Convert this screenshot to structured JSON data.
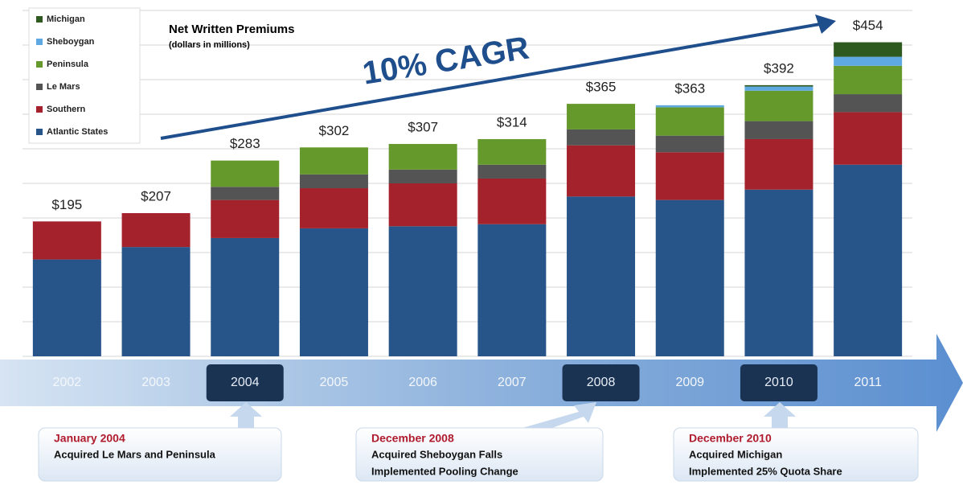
{
  "chart_data": {
    "type": "stacked_bar",
    "title": "Net Written Premiums",
    "subtitle": "(dollars in millions)",
    "annotation": "10% CAGR",
    "categories": [
      "2002",
      "2003",
      "2004",
      "2005",
      "2006",
      "2007",
      "2008",
      "2009",
      "2010",
      "2011"
    ],
    "highlighted": [
      "2004",
      "2008",
      "2010"
    ],
    "series": [
      {
        "name": "Atlantic States",
        "color": "#27558a",
        "values": [
          140,
          158,
          171,
          185,
          188,
          191,
          231,
          226,
          241,
          277
        ]
      },
      {
        "name": "Southern",
        "color": "#a4222c",
        "values": [
          55,
          49,
          55,
          58,
          62,
          66,
          74,
          69,
          73,
          76
        ]
      },
      {
        "name": "Le Mars",
        "color": "#545454",
        "values": [
          0,
          0,
          19,
          20,
          20,
          20,
          23,
          24,
          26,
          26
        ]
      },
      {
        "name": "Peninsula",
        "color": "#65992c",
        "values": [
          0,
          0,
          38,
          39,
          37,
          37,
          37,
          41,
          44,
          41
        ]
      },
      {
        "name": "Sheboygan",
        "color": "#5fa9e2",
        "values": [
          0,
          0,
          0,
          0,
          0,
          0,
          0,
          3,
          6,
          13
        ]
      },
      {
        "name": "Michigan",
        "color": "#2f5a1f",
        "values": [
          0,
          0,
          0,
          0,
          0,
          0,
          0,
          0,
          2,
          21
        ]
      }
    ],
    "totals": [
      195,
      207,
      283,
      302,
      307,
      314,
      365,
      363,
      392,
      454
    ],
    "total_labels": [
      "$195",
      "$207",
      "$283",
      "$302",
      "$307",
      "$314",
      "$365",
      "$363",
      "$392",
      "$454"
    ],
    "ylim": [
      0,
      500
    ],
    "yticks": [
      0,
      50,
      100,
      150,
      200,
      250,
      300,
      350,
      400,
      450,
      500
    ],
    "grid": true,
    "legend": "top-left",
    "callouts": [
      {
        "title": "January 2004",
        "lines": [
          "Acquired Le Mars and Peninsula"
        ]
      },
      {
        "title": "December 2008",
        "lines": [
          "Acquired Sheboygan Falls",
          "Implemented Pooling Change"
        ]
      },
      {
        "title": "December 2010",
        "lines": [
          "Acquired Michigan",
          "Implemented 25% Quota Share"
        ]
      }
    ]
  }
}
